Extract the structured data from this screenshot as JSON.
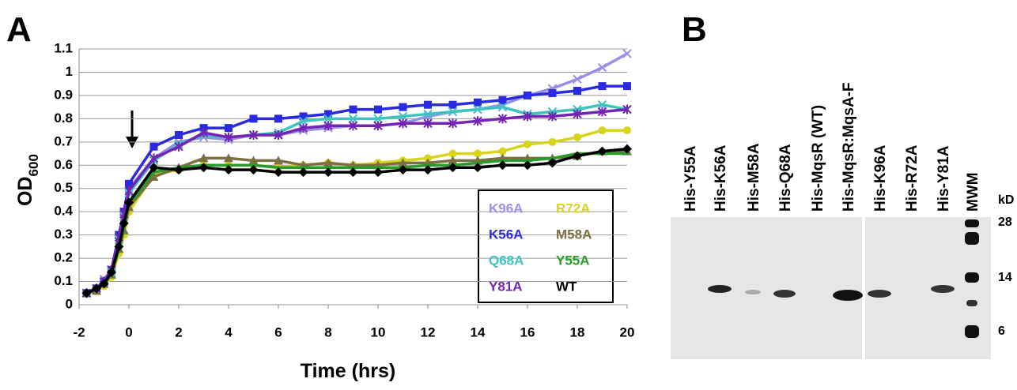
{
  "chart_data": {
    "type": "line",
    "panel_label": "A",
    "x_label": "Time (hrs)",
    "y_label": "OD",
    "y_label_sub": "600",
    "xlim": [
      -2,
      20
    ],
    "xticks": [
      -2,
      0,
      2,
      4,
      6,
      8,
      10,
      12,
      14,
      16,
      18,
      20
    ],
    "ylim": [
      0,
      1.1
    ],
    "yticks": [
      0,
      0.1,
      0.2,
      0.3,
      0.4,
      0.5,
      0.6,
      0.7,
      0.8,
      0.9,
      1,
      1.1
    ],
    "grid": true,
    "x": [
      -1.7,
      -1.3,
      -1,
      -0.7,
      -0.4,
      -0.2,
      0,
      1,
      2,
      3,
      4,
      5,
      6,
      7,
      8,
      9,
      10,
      11,
      12,
      13,
      14,
      15,
      16,
      17,
      18,
      19,
      20
    ],
    "series": [
      {
        "name": "K96A",
        "color": "#9a8fe8",
        "marker": "x",
        "values": [
          0.05,
          0.07,
          0.11,
          0.15,
          0.3,
          0.4,
          0.5,
          0.63,
          0.7,
          0.72,
          0.71,
          0.73,
          0.73,
          0.75,
          0.76,
          0.77,
          0.77,
          0.78,
          0.81,
          0.83,
          0.84,
          0.86,
          0.9,
          0.93,
          0.97,
          1.02,
          1.08
        ]
      },
      {
        "name": "R72A",
        "color": "#d8d41c",
        "marker": "circle",
        "values": [
          0.05,
          0.06,
          0.08,
          0.12,
          0.22,
          0.3,
          0.4,
          0.56,
          0.58,
          0.6,
          0.6,
          0.6,
          0.59,
          0.6,
          0.61,
          0.6,
          0.61,
          0.62,
          0.63,
          0.65,
          0.65,
          0.66,
          0.69,
          0.7,
          0.72,
          0.75,
          0.75
        ]
      },
      {
        "name": "K56A",
        "color": "#2a2ae0",
        "marker": "square",
        "values": [
          0.05,
          0.07,
          0.1,
          0.15,
          0.3,
          0.4,
          0.52,
          0.68,
          0.73,
          0.76,
          0.76,
          0.8,
          0.8,
          0.81,
          0.82,
          0.84,
          0.84,
          0.85,
          0.86,
          0.86,
          0.87,
          0.88,
          0.9,
          0.91,
          0.92,
          0.94,
          0.94
        ]
      },
      {
        "name": "M58A",
        "color": "#7a7042",
        "marker": "triangle",
        "values": [
          0.05,
          0.06,
          0.09,
          0.13,
          0.24,
          0.32,
          0.42,
          0.55,
          0.59,
          0.63,
          0.63,
          0.62,
          0.62,
          0.6,
          0.61,
          0.6,
          0.6,
          0.61,
          0.61,
          0.62,
          0.62,
          0.63,
          0.63,
          0.63,
          0.64,
          0.66,
          0.66
        ]
      },
      {
        "name": "Q68A",
        "color": "#3cc4c0",
        "marker": "x",
        "values": [
          0.05,
          0.07,
          0.1,
          0.14,
          0.28,
          0.38,
          0.48,
          0.62,
          0.69,
          0.73,
          0.72,
          0.73,
          0.74,
          0.79,
          0.8,
          0.8,
          0.8,
          0.81,
          0.82,
          0.83,
          0.84,
          0.85,
          0.82,
          0.83,
          0.84,
          0.86,
          0.84
        ]
      },
      {
        "name": "Y55A",
        "color": "#2a9a2a",
        "marker": "none",
        "values": [
          0.05,
          0.06,
          0.09,
          0.13,
          0.24,
          0.33,
          0.43,
          0.57,
          0.59,
          0.6,
          0.6,
          0.6,
          0.59,
          0.59,
          0.59,
          0.59,
          0.59,
          0.59,
          0.6,
          0.6,
          0.61,
          0.62,
          0.62,
          0.63,
          0.65,
          0.65,
          0.65
        ]
      },
      {
        "name": "Y81A",
        "color": "#7424b4",
        "marker": "star",
        "values": [
          0.05,
          0.07,
          0.1,
          0.15,
          0.29,
          0.39,
          0.49,
          0.63,
          0.68,
          0.74,
          0.72,
          0.73,
          0.73,
          0.76,
          0.77,
          0.77,
          0.77,
          0.78,
          0.78,
          0.78,
          0.79,
          0.8,
          0.81,
          0.81,
          0.82,
          0.83,
          0.84
        ]
      },
      {
        "name": "WT",
        "color": "#000000",
        "marker": "diamond",
        "values": [
          0.05,
          0.07,
          0.09,
          0.14,
          0.25,
          0.35,
          0.44,
          0.59,
          0.58,
          0.59,
          0.58,
          0.58,
          0.57,
          0.57,
          0.57,
          0.57,
          0.57,
          0.58,
          0.58,
          0.59,
          0.59,
          0.6,
          0.6,
          0.61,
          0.64,
          0.66,
          0.67
        ]
      }
    ]
  },
  "blot": {
    "panel_label": "B",
    "unit": "kD",
    "lanes": [
      "His-Y55A",
      "His-K56A",
      "His-M58A",
      "His-Q68A",
      "His-MqsR (WT)",
      "His-MqsR:MqsA-F",
      "His-K96A",
      "His-R72A",
      "His-Y81A",
      "MWM"
    ],
    "markers": [
      "28",
      "14",
      "6"
    ]
  }
}
